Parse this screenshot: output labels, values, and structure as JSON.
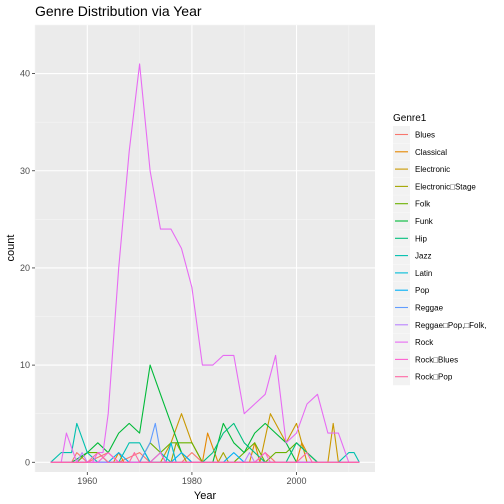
{
  "chart_data": {
    "type": "line",
    "title": "Genre Distribution via Year",
    "xlabel": "Year",
    "ylabel": "count",
    "xlim": [
      1950,
      2015
    ],
    "ylim": [
      -1,
      45
    ],
    "xticks": [
      1960,
      1980,
      2000
    ],
    "yticks": [
      0,
      10,
      20,
      30,
      40
    ],
    "grid": true,
    "legend": {
      "title": "Genre1",
      "placement": "right"
    },
    "series": [
      {
        "name": "Blues",
        "color": "#F8766D",
        "points": [
          [
            1953,
            0
          ],
          [
            1957,
            0
          ],
          [
            1958,
            1
          ],
          [
            1960,
            0
          ],
          [
            1964,
            1
          ],
          [
            1966,
            0
          ],
          [
            1970,
            1
          ],
          [
            1972,
            0
          ],
          [
            1978,
            0
          ],
          [
            1980,
            1
          ],
          [
            1982,
            0
          ],
          [
            1992,
            0
          ],
          [
            1994,
            1
          ],
          [
            1996,
            0
          ],
          [
            2012,
            0
          ]
        ]
      },
      {
        "name": "Classical",
        "color": "#E58700",
        "points": [
          [
            1953,
            0
          ],
          [
            1965,
            0
          ],
          [
            1966,
            1
          ],
          [
            1967,
            0
          ],
          [
            1982,
            0
          ],
          [
            1983,
            3
          ],
          [
            1985,
            0
          ],
          [
            1991,
            0
          ],
          [
            1992,
            2
          ],
          [
            1993,
            0
          ],
          [
            2000,
            0
          ],
          [
            2001,
            2
          ],
          [
            2002,
            1
          ],
          [
            2004,
            0
          ],
          [
            2012,
            0
          ]
        ]
      },
      {
        "name": "Electronic",
        "color": "#C99800",
        "points": [
          [
            1953,
            0
          ],
          [
            1974,
            0
          ],
          [
            1976,
            2
          ],
          [
            1978,
            5
          ],
          [
            1980,
            2
          ],
          [
            1982,
            0
          ],
          [
            1993,
            0
          ],
          [
            1995,
            5
          ],
          [
            1996,
            4
          ],
          [
            1998,
            2
          ],
          [
            2000,
            4
          ],
          [
            2002,
            0
          ],
          [
            2006,
            0
          ],
          [
            2007,
            4
          ],
          [
            2008,
            0
          ],
          [
            2012,
            0
          ]
        ]
      },
      {
        "name": "Electronic□Stage",
        "color": "#A3A500",
        "points": [
          [
            1953,
            0
          ],
          [
            1976,
            0
          ],
          [
            1977,
            2
          ],
          [
            1978,
            1
          ],
          [
            1979,
            0
          ],
          [
            1985,
            0
          ],
          [
            1986,
            1
          ],
          [
            1987,
            0
          ],
          [
            2012,
            0
          ]
        ]
      },
      {
        "name": "Folk",
        "color": "#6BB100",
        "points": [
          [
            1953,
            0
          ],
          [
            1958,
            0
          ],
          [
            1960,
            1
          ],
          [
            1962,
            1
          ],
          [
            1964,
            0
          ],
          [
            1970,
            0
          ],
          [
            1972,
            2
          ],
          [
            1974,
            1
          ],
          [
            1976,
            2
          ],
          [
            1980,
            2
          ],
          [
            1982,
            0
          ],
          [
            1988,
            0
          ],
          [
            1990,
            1
          ],
          [
            1992,
            2
          ],
          [
            1994,
            0
          ],
          [
            1996,
            1
          ],
          [
            1998,
            1
          ],
          [
            2000,
            2
          ],
          [
            2002,
            1
          ],
          [
            2004,
            0
          ],
          [
            2012,
            0
          ]
        ]
      },
      {
        "name": "Funk",
        "color": "#00BA38",
        "points": [
          [
            1953,
            0
          ],
          [
            1957,
            0
          ],
          [
            1960,
            1
          ],
          [
            1962,
            2
          ],
          [
            1964,
            1
          ],
          [
            1966,
            3
          ],
          [
            1968,
            4
          ],
          [
            1970,
            3
          ],
          [
            1972,
            10
          ],
          [
            1974,
            7
          ],
          [
            1976,
            4
          ],
          [
            1978,
            1
          ],
          [
            1980,
            0
          ],
          [
            1984,
            0
          ],
          [
            1986,
            4
          ],
          [
            1988,
            2
          ],
          [
            1990,
            1
          ],
          [
            1992,
            3
          ],
          [
            1994,
            4
          ],
          [
            1996,
            3
          ],
          [
            1998,
            2
          ],
          [
            2000,
            0
          ],
          [
            2012,
            0
          ]
        ]
      },
      {
        "name": "Hip",
        "color": "#00BF7D",
        "points": [
          [
            1953,
            0
          ],
          [
            1982,
            0
          ],
          [
            1984,
            1
          ],
          [
            1986,
            3
          ],
          [
            1988,
            4
          ],
          [
            1990,
            2
          ],
          [
            1992,
            1
          ],
          [
            1994,
            0
          ],
          [
            1998,
            0
          ],
          [
            2000,
            2
          ],
          [
            2002,
            1
          ],
          [
            2004,
            0
          ],
          [
            2012,
            0
          ]
        ]
      },
      {
        "name": "Jazz",
        "color": "#00C0AF",
        "points": [
          [
            1953,
            0
          ],
          [
            1955,
            1
          ],
          [
            1957,
            1
          ],
          [
            1958,
            4
          ],
          [
            1960,
            1
          ],
          [
            1962,
            0
          ],
          [
            1966,
            0
          ],
          [
            1968,
            2
          ],
          [
            1970,
            2
          ],
          [
            1972,
            0
          ],
          [
            1974,
            1
          ],
          [
            1976,
            0
          ],
          [
            2008,
            0
          ],
          [
            2010,
            1
          ],
          [
            2011,
            1
          ],
          [
            2012,
            0
          ]
        ]
      },
      {
        "name": "Latin",
        "color": "#00BCD8",
        "points": [
          [
            1953,
            0
          ],
          [
            1970,
            0
          ],
          [
            1971,
            1
          ],
          [
            1972,
            0
          ],
          [
            1975,
            0
          ],
          [
            1976,
            2
          ],
          [
            1977,
            0
          ],
          [
            2012,
            0
          ]
        ]
      },
      {
        "name": "Pop",
        "color": "#00B0F6",
        "points": [
          [
            1953,
            0
          ],
          [
            1964,
            0
          ],
          [
            1966,
            1
          ],
          [
            1968,
            0
          ],
          [
            1976,
            0
          ],
          [
            1978,
            1
          ],
          [
            1980,
            0
          ],
          [
            1986,
            0
          ],
          [
            1988,
            1
          ],
          [
            1990,
            0
          ],
          [
            2012,
            0
          ]
        ]
      },
      {
        "name": "Reggae",
        "color": "#619CFF",
        "points": [
          [
            1953,
            0
          ],
          [
            1970,
            0
          ],
          [
            1972,
            2
          ],
          [
            1973,
            4
          ],
          [
            1974,
            1
          ],
          [
            1975,
            0
          ],
          [
            2012,
            0
          ]
        ]
      },
      {
        "name": "Reggae□Pop,□Folk,",
        "color": "#B983FF",
        "points": [
          [
            1953,
            0
          ],
          [
            1958,
            0
          ],
          [
            1959,
            1
          ],
          [
            1960,
            0
          ],
          [
            1990,
            0
          ],
          [
            1991,
            1
          ],
          [
            1992,
            0
          ],
          [
            2012,
            0
          ]
        ]
      },
      {
        "name": "Rock",
        "color": "#E76BF3",
        "points": [
          [
            1953,
            0
          ],
          [
            1955,
            0
          ],
          [
            1956,
            3
          ],
          [
            1958,
            0
          ],
          [
            1961,
            0
          ],
          [
            1962,
            1
          ],
          [
            1963,
            1
          ],
          [
            1964,
            5
          ],
          [
            1966,
            20
          ],
          [
            1968,
            32
          ],
          [
            1970,
            41
          ],
          [
            1972,
            30
          ],
          [
            1974,
            24
          ],
          [
            1976,
            24
          ],
          [
            1978,
            22
          ],
          [
            1980,
            18
          ],
          [
            1982,
            10
          ],
          [
            1984,
            10
          ],
          [
            1986,
            11
          ],
          [
            1988,
            11
          ],
          [
            1990,
            5
          ],
          [
            1992,
            6
          ],
          [
            1994,
            7
          ],
          [
            1996,
            11
          ],
          [
            1998,
            2
          ],
          [
            2000,
            3
          ],
          [
            2002,
            6
          ],
          [
            2004,
            7
          ],
          [
            2006,
            3
          ],
          [
            2008,
            3
          ],
          [
            2010,
            0
          ],
          [
            2012,
            0
          ]
        ]
      },
      {
        "name": "Rock□Blues",
        "color": "#FD61D1",
        "points": [
          [
            1953,
            0
          ],
          [
            1962,
            0
          ],
          [
            1964,
            1
          ],
          [
            1966,
            0
          ],
          [
            1972,
            0
          ],
          [
            1974,
            1
          ],
          [
            1975,
            0
          ],
          [
            1992,
            0
          ],
          [
            1994,
            1
          ],
          [
            1995,
            0
          ],
          [
            2012,
            0
          ]
        ]
      },
      {
        "name": "Rock□Pop",
        "color": "#FF67A4",
        "points": [
          [
            1953,
            0
          ],
          [
            1960,
            0
          ],
          [
            1962,
            1
          ],
          [
            1964,
            0
          ],
          [
            1968,
            0
          ],
          [
            1969,
            1
          ],
          [
            1970,
            0
          ],
          [
            2000,
            0
          ],
          [
            2002,
            1
          ],
          [
            2003,
            0
          ],
          [
            2012,
            0
          ]
        ]
      }
    ]
  }
}
